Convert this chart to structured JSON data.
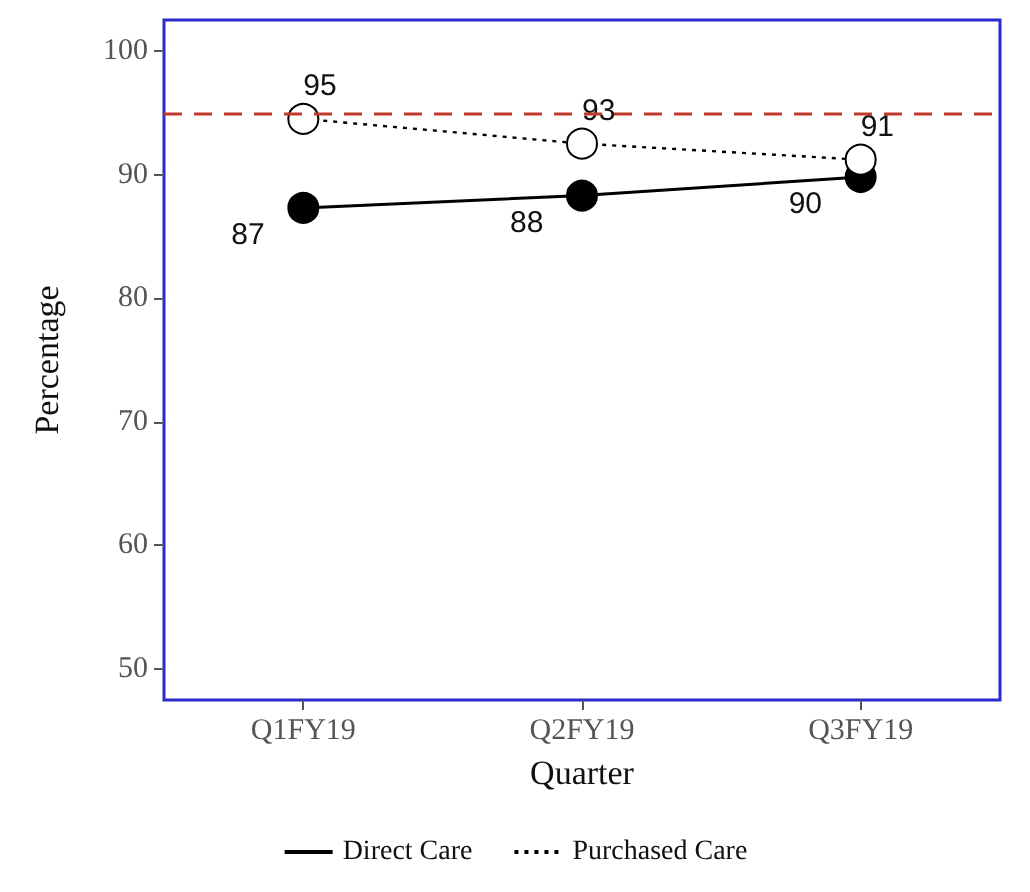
{
  "chart_data": {
    "type": "line",
    "xlabel": "Quarter",
    "ylabel": "Percentage",
    "categories": [
      "Q1FY19",
      "Q2FY19",
      "Q3FY19"
    ],
    "series": [
      {
        "name": "Direct Care",
        "color": "#000000",
        "values": [
          87.3,
          88.3,
          89.8
        ],
        "value_labels": [
          "87",
          "88",
          "90"
        ],
        "line_style": "solid"
      },
      {
        "name": "Purchased Care",
        "color": "#000000",
        "values": [
          94.5,
          92.5,
          91.2
        ],
        "value_labels": [
          "95",
          "93",
          "91"
        ],
        "line_style": "dotted"
      }
    ],
    "ylim": [
      47.5,
      102.5
    ],
    "yticks": [
      50,
      60,
      70,
      80,
      90,
      100
    ],
    "ref_lines": [
      {
        "axis": "y",
        "value": 95,
        "color": "#c0392b",
        "line_style": "dashed"
      }
    ],
    "grid": false,
    "legend": "bottom",
    "marker": "circle"
  }
}
